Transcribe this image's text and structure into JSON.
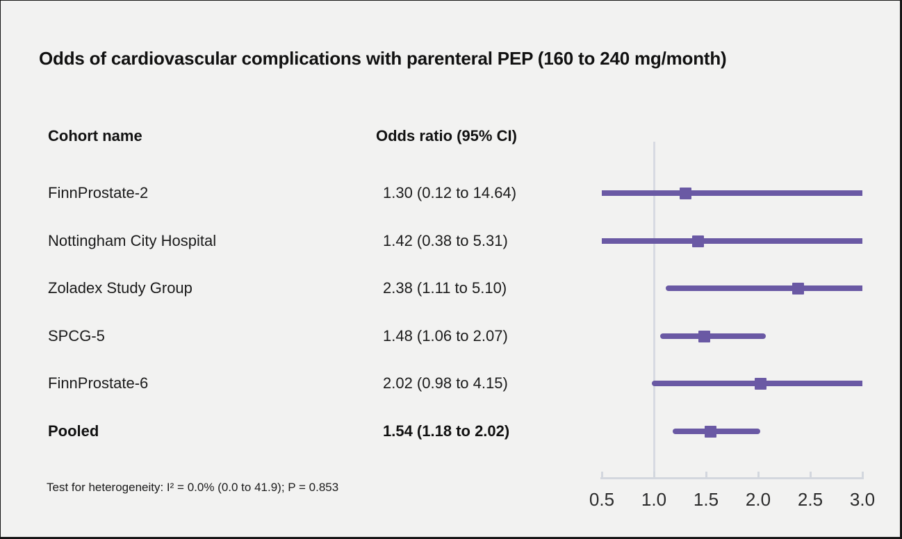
{
  "title": "Odds of cardiovascular complications with parenteral PEP (160 to 240 mg/month)",
  "table": {
    "cohort_header": "Cohort name",
    "or_header": "Odds ratio (95% CI)"
  },
  "footnote": "Test for heterogeneity: I² = 0.0% (0.0 to 41.9); P = 0.853",
  "colors": {
    "marker": "#6a59a4",
    "reference_line": "#d7dae2",
    "axis": "#d3d7de",
    "background": "#f2f2f1",
    "text": "#111111"
  },
  "chart_data": {
    "type": "forest",
    "title": "Odds of cardiovascular complications with parenteral PEP (160 to 240 mg/month)",
    "x_range": [
      0.5,
      3.0
    ],
    "reference_value": 1.0,
    "x_tick_values": [
      0.5,
      1.0,
      1.5,
      2.0,
      2.5,
      3.0
    ],
    "x_tick_labels": [
      "0.5",
      "1.0",
      "1.5",
      "2.0",
      "2.5",
      "3.0"
    ],
    "legend_position": "none",
    "grid": false,
    "rows": [
      {
        "label": "FinnProstate-2",
        "or": 1.3,
        "ci_low": 0.12,
        "ci_high": 14.64,
        "or_text": "1.30 (0.12 to 14.64)",
        "bold": false
      },
      {
        "label": "Nottingham City Hospital",
        "or": 1.42,
        "ci_low": 0.38,
        "ci_high": 5.31,
        "or_text": "1.42 (0.38 to 5.31)",
        "bold": false
      },
      {
        "label": "Zoladex Study Group",
        "or": 2.38,
        "ci_low": 1.11,
        "ci_high": 5.1,
        "or_text": "2.38 (1.11 to 5.10)",
        "bold": false
      },
      {
        "label": "SPCG-5",
        "or": 1.48,
        "ci_low": 1.06,
        "ci_high": 2.07,
        "or_text": "1.48 (1.06 to 2.07)",
        "bold": false
      },
      {
        "label": "FinnProstate-6",
        "or": 2.02,
        "ci_low": 0.98,
        "ci_high": 4.15,
        "or_text": "2.02 (0.98 to 4.15)",
        "bold": false
      },
      {
        "label": "Pooled",
        "or": 1.54,
        "ci_low": 1.18,
        "ci_high": 2.02,
        "or_text": "1.54 (1.18 to 2.02)",
        "bold": true
      }
    ],
    "heterogeneity_note": "Test for heterogeneity: I² = 0.0% (0.0 to 41.9); P = 0.853"
  }
}
